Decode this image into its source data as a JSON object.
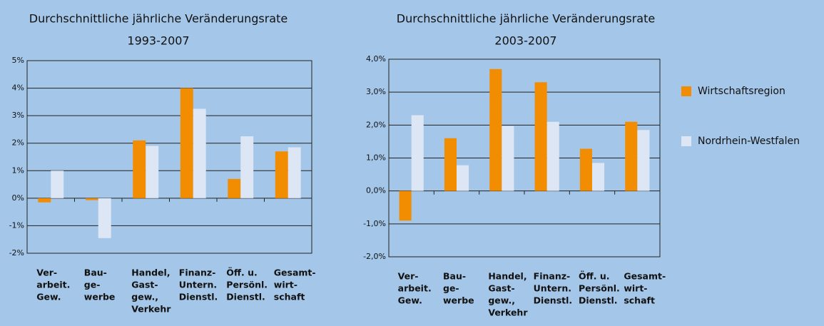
{
  "chart_data": [
    {
      "type": "bar",
      "title": "Durchschnittliche jährliche Veränderungsrate",
      "subtitle": "1993-2007",
      "categories": [
        [
          "Ver-",
          "arbeit.",
          "Gew."
        ],
        [
          "Bau-",
          "ge-",
          "werbe"
        ],
        [
          "Handel,",
          "Gast-",
          "gew.,",
          "Verkehr"
        ],
        [
          "Finanz-",
          "Untern.",
          "Dienstl."
        ],
        [
          "Öff. u.",
          "Persönl.",
          "Dienstl."
        ],
        [
          "Gesamt-",
          "wirt-",
          "schaft"
        ]
      ],
      "series": [
        {
          "color": "#f28c00",
          "values": [
            -0.15,
            -0.07,
            2.1,
            4.0,
            0.7,
            1.7
          ]
        },
        {
          "color": "#dce6f4",
          "values": [
            1.0,
            -1.45,
            1.9,
            3.25,
            2.25,
            1.85
          ]
        }
      ],
      "ylim": [
        -2,
        5
      ],
      "yticks": [
        {
          "value": -2,
          "label": "-2%"
        },
        {
          "value": -1,
          "label": "-1%"
        },
        {
          "value": 0,
          "label": "0%"
        },
        {
          "value": 1,
          "label": "1%"
        },
        {
          "value": 2,
          "label": "2%"
        },
        {
          "value": 3,
          "label": "3%"
        },
        {
          "value": 4,
          "label": "4%"
        },
        {
          "value": 5,
          "label": "5%"
        }
      ],
      "grid": true
    },
    {
      "type": "bar",
      "title": "Durchschnittliche jährliche Veränderungsrate",
      "subtitle": "2003-2007",
      "categories": [
        [
          "Ver-",
          "arbeit.",
          "Gew."
        ],
        [
          "Bau-",
          "ge-",
          "werbe"
        ],
        [
          "Handel,",
          "Gast-",
          "gew.,",
          "Verkehr"
        ],
        [
          "Finanz-",
          "Untern.",
          "Dienstl."
        ],
        [
          "Öff. u.",
          "Persönl.",
          "Dienstl."
        ],
        [
          "Gesamt-",
          "wirt-",
          "schaft"
        ]
      ],
      "series": [
        {
          "name": "Wirtschaftsregion",
          "color": "#f28c00",
          "values": [
            -0.9,
            1.6,
            3.7,
            3.3,
            1.28,
            2.1
          ]
        },
        {
          "name": "Nordrhein-Westfalen",
          "color": "#dce6f4",
          "values": [
            2.3,
            0.78,
            1.97,
            2.1,
            0.85,
            1.85
          ]
        }
      ],
      "ylim": [
        -2,
        4
      ],
      "yticks": [
        {
          "value": -2,
          "label": "-2,0%"
        },
        {
          "value": -1,
          "label": "-1,0%"
        },
        {
          "value": 0,
          "label": "0,0%"
        },
        {
          "value": 1,
          "label": "1,0%"
        },
        {
          "value": 2,
          "label": "2,0%"
        },
        {
          "value": 3,
          "label": "3,0%"
        },
        {
          "value": 4,
          "label": "4,0%"
        }
      ],
      "grid": true
    }
  ]
}
